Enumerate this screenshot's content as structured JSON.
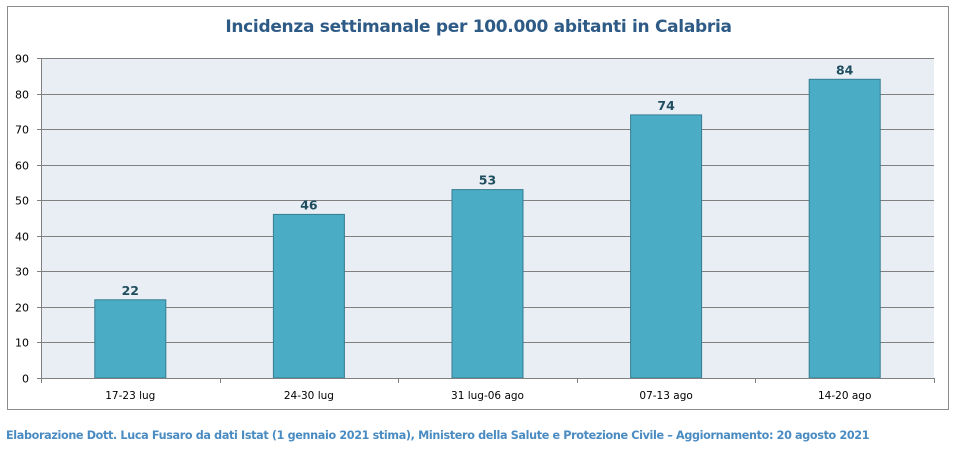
{
  "chart_data": {
    "type": "bar",
    "title": "Incidenza settimanale per 100.000 abitanti in Calabria",
    "xlabel": "",
    "ylabel": "",
    "ylim": [
      0,
      90
    ],
    "yticks": [
      0,
      10,
      20,
      30,
      40,
      50,
      60,
      70,
      80,
      90
    ],
    "grid": true,
    "categories": [
      "17-23 lug",
      "24-30 lug",
      "31 lug-06 ago",
      "07-13 ago",
      "14-20 ago"
    ],
    "values": [
      22,
      46,
      53,
      74,
      84
    ],
    "data_labels": [
      "22",
      "46",
      "53",
      "74",
      "84"
    ],
    "colors": {
      "bar_fill": "#4bacc6",
      "bar_stroke": "#357d91",
      "plot_bg": "#e8eef4",
      "grid": "#808080",
      "label": "#1f4e5f",
      "title": "#2e5a86"
    }
  },
  "footer": {
    "text": "Elaborazione Dott. Luca Fusaro da dati Istat (1 gennaio 2021 stima), Ministero della Salute e Protezione Civile – Aggiornamento: 20 agosto 2021"
  }
}
